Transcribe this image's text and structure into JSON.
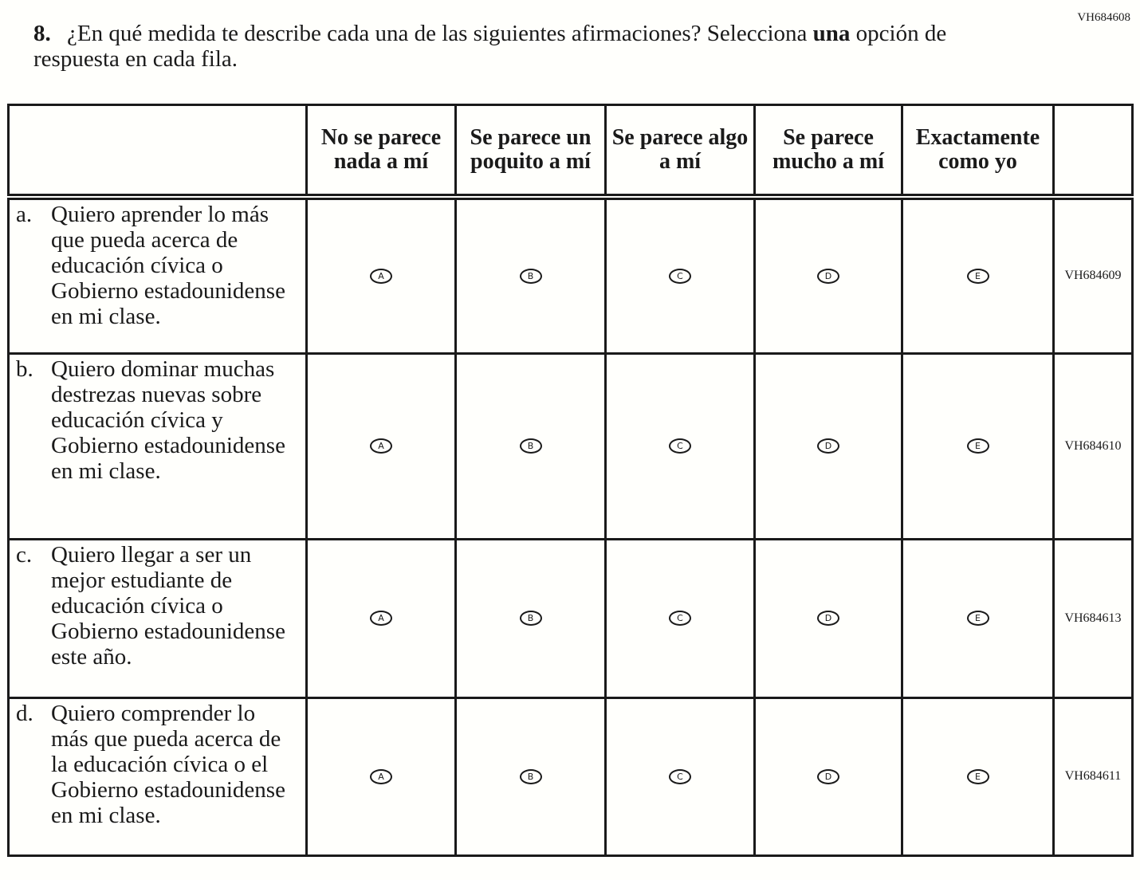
{
  "item_id": "VH684608",
  "question": {
    "number": "8.",
    "text_before": "¿En qué medida te describe cada una de las siguientes afirmaciones? Selecciona ",
    "bold": "una",
    "text_after": " opción de respuesta en cada fila."
  },
  "columns": [
    "No se parece nada a mí",
    "Se parece un poquito a mí",
    "Se parece algo a mí",
    "Se parece mucho a mí",
    "Exactamente como yo"
  ],
  "options": [
    "A",
    "B",
    "C",
    "D",
    "E"
  ],
  "rows": [
    {
      "label": "a.",
      "text": "Quiero aprender lo más que pueda acerca de educación cívica o Gobierno estadounidense en mi clase.",
      "id": "VH684609"
    },
    {
      "label": "b.",
      "text": "Quiero dominar muchas destrezas nuevas sobre educación cívica y Gobierno estadounidense en mi clase.",
      "id": "VH684610"
    },
    {
      "label": "c.",
      "text": "Quiero llegar a ser un mejor estudiante de educación cívica o Gobierno estadounidense este año.",
      "id": "VH684613"
    },
    {
      "label": "d.",
      "text": "Quiero comprender lo más que pueda acerca de la educación cívica o el Gobierno estadounidense en mi clase.",
      "id": "VH684611"
    }
  ]
}
